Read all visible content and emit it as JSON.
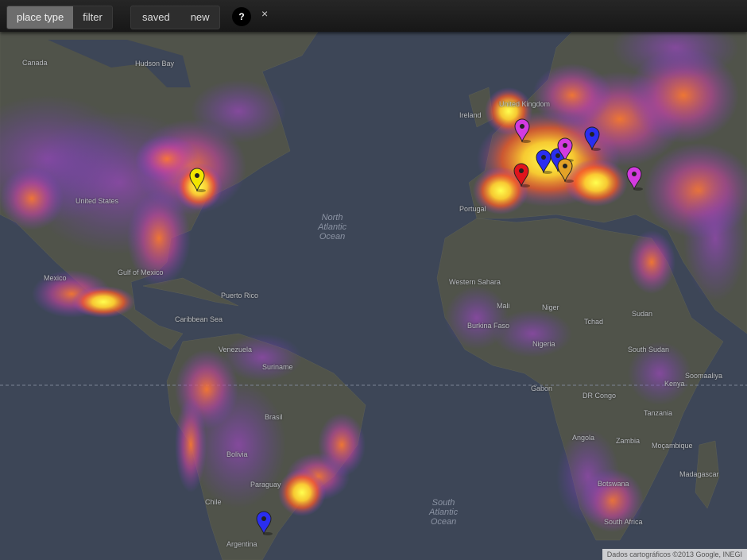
{
  "toolbar": {
    "place_type": "place type",
    "filter": "filter",
    "saved": "saved",
    "new": "new",
    "help": "?",
    "close": "×"
  },
  "map": {
    "oceans": {
      "north_atlantic": "North\nAtlantic\nOcean",
      "south_atlantic": "South\nAtlantic\nOcean"
    },
    "labels": {
      "canada": "Canada",
      "hudson": "Hudson Bay",
      "us": "United States",
      "mexico": "Mexico",
      "gulf": "Gulf of Mexico",
      "caribbean": "Caribbean Sea",
      "puerto_rico": "Puerto Rico",
      "venezuela": "Venezuela",
      "suriname": "Suriname",
      "brasil": "Brasil",
      "bolivia": "Bolivia",
      "paraguay": "Paraguay",
      "chile": "Chile",
      "argentina": "Argentina",
      "mali": "Mali",
      "niger": "Niger",
      "tchad": "Tchad",
      "nigeria": "Nigeria",
      "sudan": "Sudan",
      "south_sudan": "South Sudan",
      "soomaaliya": "Soomaaliya",
      "kenya": "Kenya",
      "tanzania": "Tanzania",
      "drcongo": "DR Congo",
      "gabon": "Gabon",
      "angola": "Angola",
      "zambia": "Zambia",
      "mocambique": "Moçambique",
      "botswana": "Botswana",
      "madagascar": "Madagascar",
      "south_africa": "South Africa",
      "western_sahara": "Western Sahara",
      "burkina": "Burkina Faso",
      "portugal": "Portugal",
      "ireland": "Ireland",
      "united_kingdom": "United Kingdom"
    },
    "markers": [
      {
        "color": "#f2e600",
        "type": "place"
      },
      {
        "color": "#d33be0",
        "type": "place"
      },
      {
        "color": "#e0141c",
        "type": "place"
      },
      {
        "color": "#2a2ef0",
        "type": "place"
      },
      {
        "color": "#2a2ef0",
        "type": "place"
      },
      {
        "color": "#d33be0",
        "type": "place"
      },
      {
        "color": "#e3a227",
        "type": "place"
      },
      {
        "color": "#2a2ef0",
        "type": "place"
      },
      {
        "color": "#d33be0",
        "type": "place"
      },
      {
        "color": "#2a2ef0",
        "type": "place"
      }
    ],
    "attribution": "Dados cartográficos ©2013 Google, INEGI"
  },
  "colors": {
    "ocean": "#3d4657",
    "land": "#50534a",
    "heat_low": "#7a3fd0",
    "heat_mid": "#ff5a1f",
    "heat_high": "#ffff3c"
  }
}
